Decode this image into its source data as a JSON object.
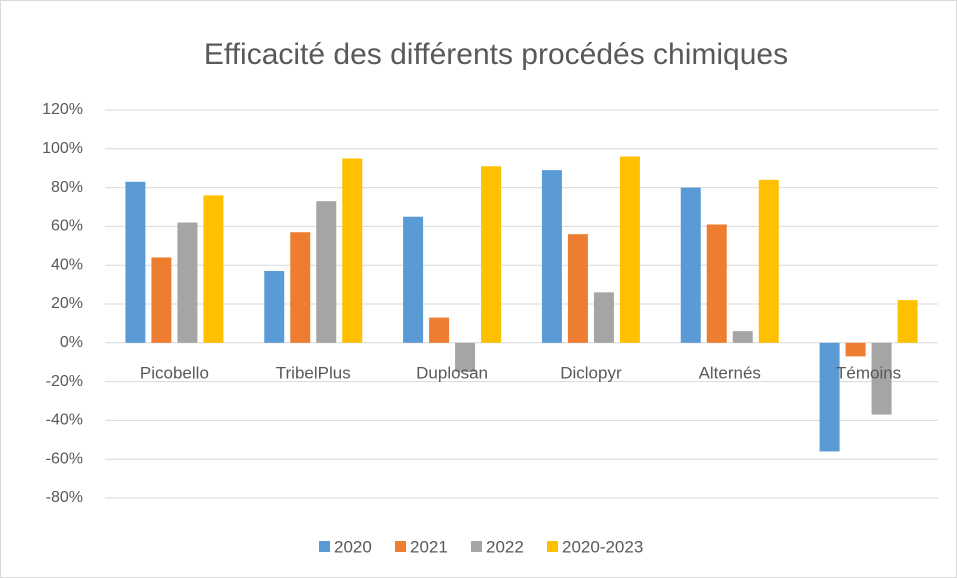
{
  "chart_data": {
    "type": "bar",
    "title": "Efficacité des différents procédés chimiques",
    "categories": [
      "Picobello",
      "TribelPlus",
      "Duplosan",
      "Diclopyr",
      "Alternés",
      "Témoins"
    ],
    "series": [
      {
        "name": "2020",
        "color": "#5b9bd5",
        "values": [
          83,
          37,
          65,
          89,
          80,
          -56
        ]
      },
      {
        "name": "2021",
        "color": "#ed7d31",
        "values": [
          44,
          57,
          13,
          56,
          61,
          -7
        ]
      },
      {
        "name": "2022",
        "color": "#a5a5a5",
        "values": [
          62,
          73,
          -15,
          26,
          6,
          -37
        ]
      },
      {
        "name": "2020-2023",
        "color": "#ffc000",
        "values": [
          76,
          95,
          91,
          96,
          84,
          22
        ]
      }
    ],
    "ylim": [
      -80,
      120
    ],
    "yticks": [
      {
        "value": -80,
        "label": "-80%"
      },
      {
        "value": -60,
        "label": "-60%"
      },
      {
        "value": -40,
        "label": "-40%"
      },
      {
        "value": -20,
        "label": "-20%"
      },
      {
        "value": 0,
        "label": "0%"
      },
      {
        "value": 20,
        "label": "20%"
      },
      {
        "value": 40,
        "label": "40%"
      },
      {
        "value": 60,
        "label": "60%"
      },
      {
        "value": 80,
        "label": "80%"
      },
      {
        "value": 100,
        "label": "100%"
      },
      {
        "value": 120,
        "label": "120%"
      }
    ],
    "grid": true,
    "legend": "bottom"
  }
}
